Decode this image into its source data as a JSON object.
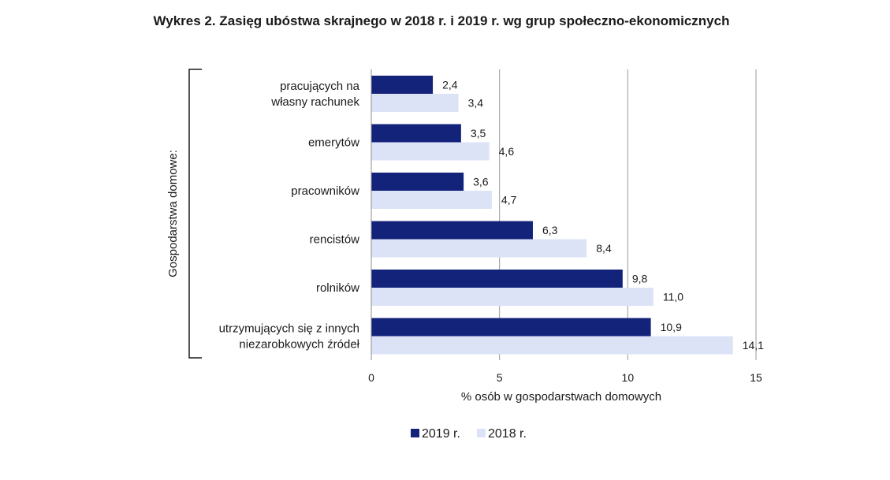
{
  "chart_data": {
    "type": "bar",
    "orientation": "horizontal",
    "title": "Wykres 2. Zasięg ubóstwa skrajnego w 2018 r. i 2019 r. wg grup społeczno-ekonomicznych",
    "group_label": "Gospodarstwa domowe:",
    "xlabel": "% osób w gospodarstwach domowych",
    "xlim": [
      0,
      15
    ],
    "xticks": [
      0,
      5,
      10,
      15
    ],
    "grid": true,
    "legend_position": "bottom-center",
    "categories": [
      [
        "pracujących na",
        "własny rachunek"
      ],
      [
        "emerytów"
      ],
      [
        "pracowników"
      ],
      [
        "rencistów"
      ],
      [
        "rolników"
      ],
      [
        "utrzymujących się z innych",
        "niezarobkowych źródeł"
      ]
    ],
    "series": [
      {
        "name": "2019 r.",
        "color": "#14237a",
        "values": [
          2.4,
          3.5,
          3.6,
          6.3,
          9.8,
          10.9
        ],
        "labels": [
          "2,4",
          "3,5",
          "3,6",
          "6,3",
          "9,8",
          "10,9"
        ]
      },
      {
        "name": "2018 r.",
        "color": "#dce3f7",
        "values": [
          3.4,
          4.6,
          4.7,
          8.4,
          11.0,
          14.1
        ],
        "labels": [
          "3,4",
          "4,6",
          "4,7",
          "8,4",
          "11,0",
          "14,1"
        ]
      }
    ]
  }
}
